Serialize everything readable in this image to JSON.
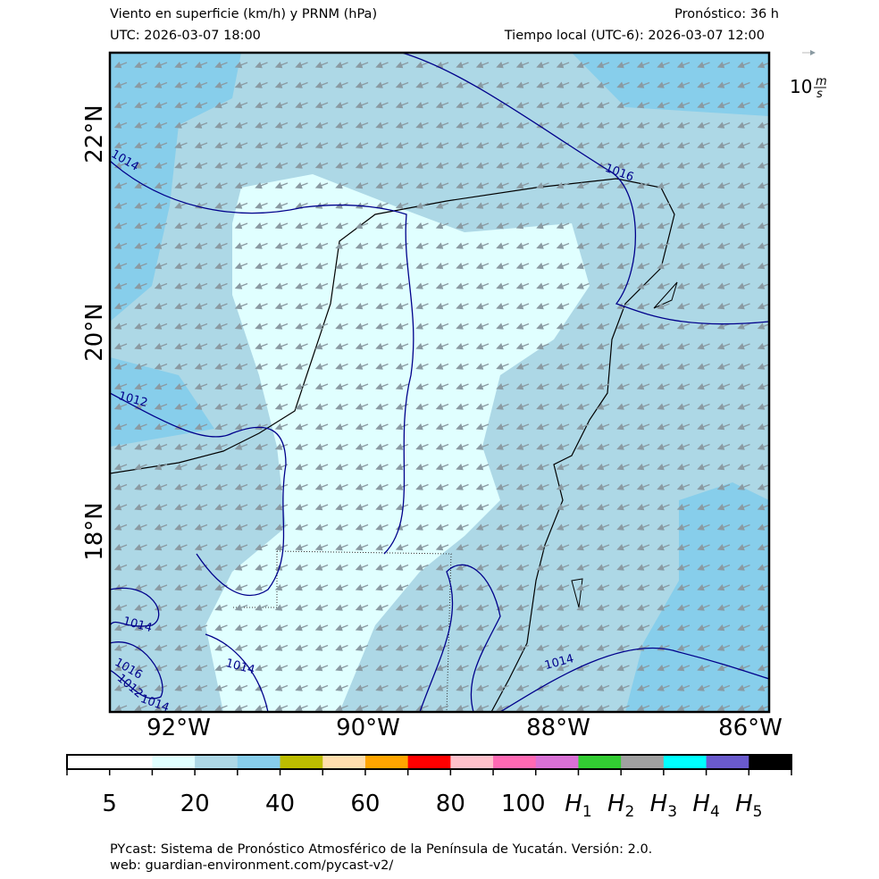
{
  "header": {
    "title": "Viento en superficie (km/h) y PRNM (hPa)",
    "forecast": "Pronóstico: 36 h",
    "utc": "UTC:  2026-03-07 18:00",
    "local": "Tiempo local (UTC-6): 2026-03-07 12:00"
  },
  "map": {
    "lat_labels": [
      "22°N",
      "20°N",
      "18°N"
    ],
    "lon_labels": [
      "92°W",
      "90°W",
      "88°W",
      "86°W"
    ],
    "contour_labels": [
      "1014",
      "1016",
      "1012",
      "1014",
      "1014",
      "1016",
      "1012",
      "1014",
      "1014"
    ],
    "quiver_key": {
      "value": "10",
      "unit_top": "m",
      "unit_bottom": "s"
    }
  },
  "colorbar": {
    "colors": [
      "#ffffff",
      "#ffffff",
      "#e0ffff",
      "#add8e6",
      "#87ceeb",
      "#bdbd00",
      "#ffdead",
      "#ffa500",
      "#ff0000",
      "#ffc0cb",
      "#ff69b4",
      "#da70d6",
      "#32cd32",
      "#a0a0a0",
      "#00ffff",
      "#6a5acd",
      "#000000"
    ],
    "labels": [
      "5",
      "20",
      "40",
      "60",
      "80",
      "100",
      "H1",
      "H2",
      "H3",
      "H4",
      "H5"
    ]
  },
  "footer": {
    "line1": "PYcast: Sistema de Pronóstico Atmosférico de la Península de Yucatán. Versión: 2.0.",
    "line2": "web: guardian-environment.com/pycast-v2/"
  }
}
